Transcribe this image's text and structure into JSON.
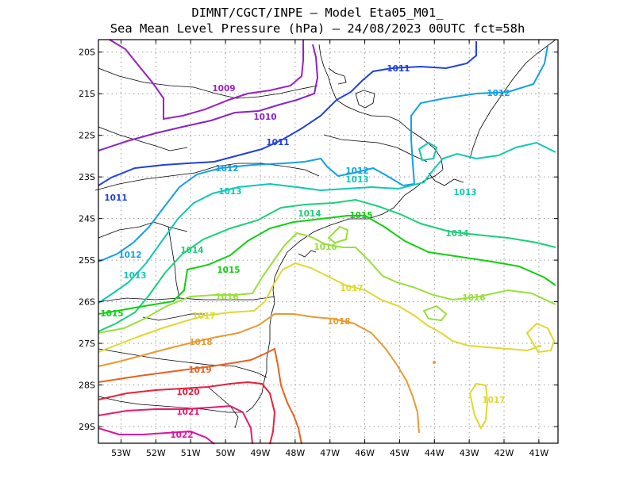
{
  "title": {
    "line1": "DIMNT/CGCT/INPE –  Model Eta05_M01_",
    "line2": "Sea Mean Level Pressure (hPa) – 24/08/2023 00UTC fct=58h"
  },
  "map": {
    "lon_range": [
      -53.65,
      -40.45
    ],
    "lat_range": [
      -29.4,
      -19.7
    ],
    "lon_ticks": [
      "53W",
      "52W",
      "51W",
      "50W",
      "49W",
      "48W",
      "47W",
      "46W",
      "45W",
      "44W",
      "43W",
      "42W",
      "41W"
    ],
    "lat_ticks": [
      "20S",
      "21S",
      "22S",
      "23S",
      "24S",
      "25S",
      "26S",
      "27S",
      "28S",
      "29S"
    ],
    "grid": "dotted"
  },
  "isobars": [
    {
      "level": "1009",
      "color": "#9b1fc4"
    },
    {
      "level": "1010",
      "color": "#8a22c8"
    },
    {
      "level": "1011",
      "color": "#2040e0"
    },
    {
      "level": "1012",
      "color": "#14a0e8"
    },
    {
      "level": "1013",
      "color": "#10c8b4"
    },
    {
      "level": "1014",
      "color": "#1ad07a"
    },
    {
      "level": "1015",
      "color": "#10d010"
    },
    {
      "level": "1016",
      "color": "#98e03a"
    },
    {
      "level": "1017",
      "color": "#e0d830"
    },
    {
      "level": "1018",
      "color": "#e89a30"
    },
    {
      "level": "1019",
      "color": "#e86020"
    },
    {
      "level": "1020",
      "color": "#e8203c"
    },
    {
      "level": "1021",
      "color": "#e81870"
    },
    {
      "level": "1022",
      "color": "#e0109c"
    }
  ]
}
